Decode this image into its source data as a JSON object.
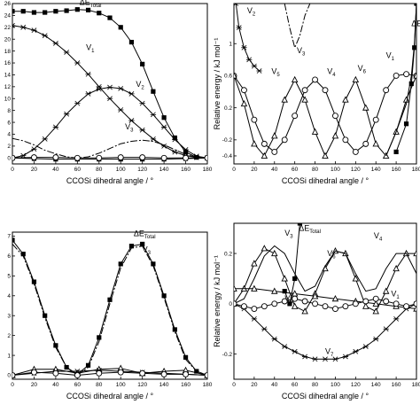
{
  "chart_data": [
    {
      "type": "line",
      "xlabel": "CCOSi dihedral angle / °",
      "ylabel": "",
      "xlim": [
        0,
        180
      ],
      "ylim": [
        -1,
        26
      ],
      "xticks": [
        "0",
        "20",
        "40",
        "60",
        "80",
        "100",
        "120",
        "140",
        "160",
        "180"
      ],
      "yticks": [
        "0",
        "2",
        "4",
        "6",
        "8",
        "10",
        "12",
        "14",
        "16",
        "18",
        "20",
        "22",
        "24",
        "26"
      ],
      "labels": [
        {
          "text": "ΔE",
          "sub": "Total",
          "x": 62,
          "y": 25.8
        },
        {
          "text": "V",
          "sub": "1",
          "x": 68,
          "y": 18.2
        },
        {
          "text": "V",
          "sub": "2",
          "x": 114,
          "y": 12.0
        },
        {
          "text": "V",
          "sub": "3",
          "x": 104,
          "y": 4.8
        }
      ],
      "series": [
        {
          "color": "#000000",
          "marker": "square",
          "dash": "",
          "x": [
            0,
            10,
            20,
            30,
            40,
            50,
            60,
            70,
            80,
            90,
            100,
            110,
            120,
            130,
            140,
            150,
            160,
            170,
            180
          ],
          "y": [
            24.7,
            24.7,
            24.5,
            24.5,
            24.7,
            24.8,
            25.0,
            24.9,
            24.4,
            23.6,
            22.0,
            19.5,
            15.8,
            11.2,
            6.8,
            3.4,
            1.0,
            0.1,
            0.0
          ]
        },
        {
          "color": "#000000",
          "marker": "star",
          "dash": "",
          "x": [
            0,
            10,
            20,
            30,
            40,
            50,
            60,
            70,
            80,
            90,
            100,
            110,
            120,
            130,
            140,
            150,
            160,
            170,
            180
          ],
          "y": [
            22.3,
            22.0,
            21.5,
            20.6,
            19.3,
            17.8,
            16.0,
            14.1,
            12.0,
            10.0,
            8.1,
            6.3,
            4.7,
            3.2,
            2.0,
            1.0,
            0.4,
            0.1,
            0.0
          ]
        },
        {
          "color": "#000000",
          "marker": "star",
          "dash": "",
          "x": [
            0,
            10,
            20,
            30,
            40,
            50,
            60,
            70,
            80,
            90,
            100,
            110,
            120,
            130,
            140,
            150,
            160,
            170,
            180
          ],
          "y": [
            0.0,
            0.4,
            1.5,
            3.2,
            5.2,
            7.4,
            9.2,
            10.8,
            11.6,
            11.9,
            11.7,
            10.8,
            9.2,
            7.3,
            5.2,
            3.1,
            1.4,
            0.3,
            0.0
          ]
        },
        {
          "color": "#000000",
          "marker": "none",
          "dash": "8,2,2,2",
          "x": [
            0,
            10,
            20,
            30,
            40,
            50,
            60,
            70,
            80,
            90,
            100,
            110,
            120,
            130,
            140,
            150,
            160,
            170,
            180
          ],
          "y": [
            3.3,
            2.9,
            2.2,
            1.3,
            0.7,
            0.2,
            0.0,
            0.2,
            0.8,
            1.6,
            2.4,
            2.8,
            3.0,
            2.8,
            2.2,
            1.4,
            0.6,
            0.1,
            0.0
          ]
        },
        {
          "color": "#000000",
          "marker": "square",
          "dash": "",
          "x": [
            0,
            20,
            40,
            60,
            80,
            100,
            120,
            140,
            160,
            180
          ],
          "y": [
            0.0,
            -0.1,
            -0.2,
            -0.2,
            -0.2,
            -0.2,
            -0.2,
            -0.2,
            -0.1,
            0.0
          ]
        },
        {
          "color": "#000000",
          "marker": "circle",
          "dash": "",
          "x": [
            0,
            20,
            40,
            60,
            80,
            100,
            120,
            140,
            160,
            180
          ],
          "y": [
            0.0,
            0.1,
            0.1,
            0.0,
            0.0,
            0.1,
            0.1,
            0.0,
            0.0,
            0.0
          ]
        }
      ]
    },
    {
      "type": "line",
      "xlabel": "CCOSi dihedral angle / °",
      "ylabel": "Relative energy / kJ mol⁻¹",
      "xlim": [
        0,
        180
      ],
      "ylim": [
        -0.5,
        1.5
      ],
      "xticks": [
        "0",
        "20",
        "40",
        "60",
        "80",
        "100",
        "120",
        "140",
        "160",
        "180"
      ],
      "yticks": [
        "-0.4",
        "-0.2",
        "0.2",
        "0.6",
        "1"
      ],
      "labels": [
        {
          "text": "V",
          "sub": "2",
          "x": 13,
          "y": 1.38
        },
        {
          "text": "V",
          "sub": "3",
          "x": 62,
          "y": 0.88
        },
        {
          "text": "V",
          "sub": "1",
          "x": 150,
          "y": 0.82
        },
        {
          "text": "V",
          "sub": "5",
          "x": 37,
          "y": 0.62
        },
        {
          "text": "V",
          "sub": "4",
          "x": 92,
          "y": 0.62
        },
        {
          "text": "V",
          "sub": "6",
          "x": 122,
          "y": 0.66
        },
        {
          "text": "ΔE",
          "sub": "",
          "x": 175,
          "y": 1.22
        }
      ],
      "series": [
        {
          "color": "#000000",
          "marker": "circle",
          "dash": "",
          "x": [
            0,
            10,
            20,
            30,
            40,
            50,
            60,
            70,
            80,
            90,
            100,
            110,
            120,
            130,
            140,
            150,
            160,
            170,
            180
          ],
          "y": [
            0.6,
            0.42,
            0.05,
            -0.25,
            -0.35,
            -0.2,
            0.1,
            0.42,
            0.55,
            0.42,
            0.1,
            -0.2,
            -0.35,
            -0.25,
            0.05,
            0.42,
            0.6,
            0.62,
            0.6
          ]
        },
        {
          "color": "#000000",
          "marker": "triangle",
          "dash": "",
          "x": [
            0,
            10,
            20,
            30,
            40,
            50,
            60,
            70,
            80,
            90,
            100,
            110,
            120,
            130,
            140,
            150,
            160,
            170,
            180
          ],
          "y": [
            0.6,
            0.25,
            -0.25,
            -0.4,
            -0.15,
            0.3,
            0.55,
            0.3,
            -0.1,
            -0.4,
            -0.15,
            0.3,
            0.55,
            0.2,
            -0.25,
            -0.4,
            -0.1,
            0.3,
            0.6
          ]
        },
        {
          "color": "#000000",
          "marker": "star",
          "dash": "",
          "x": [
            2,
            5,
            10,
            15,
            20,
            25
          ],
          "y": [
            1.5,
            1.2,
            0.95,
            0.8,
            0.72,
            0.66
          ]
        },
        {
          "color": "#000000",
          "marker": "none",
          "dash": "8,2,2,2",
          "x": [
            50,
            55,
            60,
            65,
            70,
            75
          ],
          "y": [
            1.5,
            1.2,
            0.95,
            1.1,
            1.35,
            1.5
          ]
        },
        {
          "color": "#000000",
          "marker": "none",
          "dash": "",
          "x": [
            150,
            160,
            170,
            175,
            178,
            180
          ],
          "y": [
            -0.4,
            -0.1,
            0.25,
            0.6,
            1.0,
            1.5
          ]
        },
        {
          "color": "#000000",
          "marker": "square",
          "dash": "",
          "x": [
            160,
            170,
            175,
            178,
            180
          ],
          "y": [
            -0.35,
            0.0,
            0.5,
            0.95,
            1.5
          ]
        }
      ]
    },
    {
      "type": "line",
      "xlabel": "CCOSi dihedral angle / °",
      "ylabel": "",
      "xlim": [
        0,
        180
      ],
      "ylim": [
        -0.2,
        7.2
      ],
      "xticks": [
        "0",
        "20",
        "40",
        "60",
        "80",
        "100",
        "120",
        "140",
        "160",
        "180"
      ],
      "yticks": [
        "0",
        "1",
        "2",
        "3",
        "4",
        "5",
        "6",
        "7"
      ],
      "labels": [
        {
          "text": "ΔE",
          "sub": "Total",
          "x": 112,
          "y": 7.0
        },
        {
          "text": "V",
          "sub": "3",
          "x": 120,
          "y": 6.2
        }
      ],
      "series": [
        {
          "color": "#000000",
          "marker": "square",
          "dash": "",
          "x": [
            0,
            10,
            20,
            30,
            40,
            50,
            60,
            70,
            80,
            90,
            100,
            110,
            120,
            130,
            140,
            150,
            160,
            170,
            180
          ],
          "y": [
            6.8,
            6.1,
            4.7,
            3.0,
            1.5,
            0.4,
            0.05,
            0.5,
            1.9,
            3.8,
            5.6,
            6.5,
            6.6,
            5.6,
            4.0,
            2.3,
            0.9,
            0.2,
            0.0
          ]
        },
        {
          "color": "#000000",
          "marker": "none",
          "dash": "8,2,2,2",
          "x": [
            0,
            10,
            20,
            30,
            40,
            50,
            60,
            70,
            80,
            90,
            100,
            110,
            120,
            130,
            140,
            150,
            160,
            170,
            180
          ],
          "y": [
            6.6,
            6.0,
            4.6,
            2.9,
            1.4,
            0.4,
            0.0,
            0.4,
            1.7,
            3.6,
            5.4,
            6.4,
            6.5,
            5.5,
            3.9,
            2.2,
            0.8,
            0.2,
            0.0
          ]
        },
        {
          "color": "#000000",
          "marker": "triangle",
          "dash": "",
          "x": [
            0,
            20,
            40,
            60,
            80,
            100,
            120,
            140,
            160,
            180
          ],
          "y": [
            0.0,
            0.3,
            0.3,
            0.1,
            0.3,
            0.35,
            0.1,
            0.2,
            0.25,
            0.0
          ]
        },
        {
          "color": "#000000",
          "marker": "star",
          "dash": "",
          "x": [
            0,
            20,
            40,
            60,
            80,
            100,
            120,
            140,
            160,
            180
          ],
          "y": [
            0.0,
            0.1,
            0.2,
            0.2,
            0.25,
            0.2,
            0.15,
            0.1,
            0.05,
            0.0
          ]
        },
        {
          "color": "#000000",
          "marker": "circle",
          "dash": "",
          "x": [
            0,
            20,
            40,
            60,
            80,
            100,
            120,
            140,
            160,
            180
          ],
          "y": [
            0.0,
            0.15,
            0.1,
            0.0,
            0.1,
            0.15,
            0.1,
            0.05,
            0.05,
            0.0
          ]
        }
      ]
    },
    {
      "type": "line",
      "xlabel": "CCOSi dihedral angle / °",
      "ylabel": "Relative energy / kJ mol⁻¹",
      "xlim": [
        0,
        180
      ],
      "ylim": [
        -0.3,
        0.32
      ],
      "xticks": [
        "0",
        "20",
        "40",
        "60",
        "80",
        "100",
        "120",
        "140",
        "160",
        "180"
      ],
      "yticks": [
        "-0.2",
        "0",
        "0.2"
      ],
      "labels": [
        {
          "text": "V",
          "sub": "3",
          "x": 50,
          "y": 0.27
        },
        {
          "text": "ΔE",
          "sub": "Total",
          "x": 64,
          "y": 0.29
        },
        {
          "text": "V",
          "sub": "4",
          "x": 138,
          "y": 0.26
        },
        {
          "text": "V",
          "sub": "6",
          "x": 92,
          "y": 0.19
        },
        {
          "text": "V",
          "sub": "5",
          "x": 50,
          "y": 0.01
        },
        {
          "text": "V",
          "sub": "1",
          "x": 155,
          "y": 0.03
        },
        {
          "text": "V",
          "sub": "7",
          "x": 90,
          "y": -0.2
        }
      ],
      "series": [
        {
          "color": "#000000",
          "marker": "star",
          "dash": "",
          "x": [
            0,
            10,
            20,
            30,
            40,
            50,
            60,
            70,
            80,
            90,
            100,
            110,
            120,
            130,
            140,
            150,
            160,
            170,
            180
          ],
          "y": [
            0.0,
            -0.02,
            -0.06,
            -0.1,
            -0.14,
            -0.17,
            -0.19,
            -0.21,
            -0.22,
            -0.22,
            -0.22,
            -0.21,
            -0.19,
            -0.17,
            -0.14,
            -0.1,
            -0.06,
            -0.02,
            0.0
          ]
        },
        {
          "color": "#000000",
          "marker": "triangle",
          "dash": "",
          "x": [
            0,
            10,
            20,
            30,
            40,
            50,
            60,
            70,
            80,
            90,
            100,
            110,
            120,
            130,
            140,
            150,
            160,
            170,
            180
          ],
          "y": [
            0.0,
            0.06,
            0.16,
            0.22,
            0.2,
            0.1,
            -0.01,
            -0.03,
            0.04,
            0.14,
            0.21,
            0.2,
            0.1,
            -0.01,
            -0.03,
            0.05,
            0.14,
            0.2,
            0.2
          ]
        },
        {
          "color": "#000000",
          "marker": "none",
          "dash": "",
          "x": [
            0,
            10,
            20,
            30,
            40,
            50,
            60,
            70,
            80,
            90,
            100,
            110,
            120,
            130,
            140,
            150,
            160,
            170,
            180
          ],
          "y": [
            0.0,
            0.02,
            0.1,
            0.19,
            0.23,
            0.2,
            0.12,
            0.05,
            0.07,
            0.15,
            0.21,
            0.2,
            0.12,
            0.05,
            0.06,
            0.14,
            0.2,
            0.2,
            0.12
          ]
        },
        {
          "color": "#000000",
          "marker": "triangle",
          "dash": "",
          "x": [
            0,
            20,
            40,
            60,
            80,
            100,
            120,
            140,
            160,
            180
          ],
          "y": [
            0.06,
            0.06,
            0.05,
            0.04,
            0.03,
            0.02,
            0.01,
            0.0,
            -0.01,
            -0.02
          ]
        },
        {
          "color": "#000000",
          "marker": "circle",
          "dash": "",
          "x": [
            0,
            10,
            20,
            30,
            40,
            50,
            60,
            70,
            80,
            90,
            100,
            110,
            120,
            130,
            140,
            150,
            160,
            170,
            180
          ],
          "y": [
            0.0,
            -0.01,
            -0.02,
            -0.01,
            0.0,
            0.01,
            0.02,
            0.01,
            0.0,
            -0.01,
            -0.02,
            -0.01,
            0.0,
            0.01,
            0.02,
            0.01,
            0.0,
            -0.01,
            0.0
          ]
        },
        {
          "color": "#000000",
          "marker": "square",
          "dash": "",
          "x": [
            50,
            55,
            60,
            65
          ],
          "y": [
            0.05,
            0.0,
            0.1,
            0.32
          ]
        }
      ]
    }
  ]
}
